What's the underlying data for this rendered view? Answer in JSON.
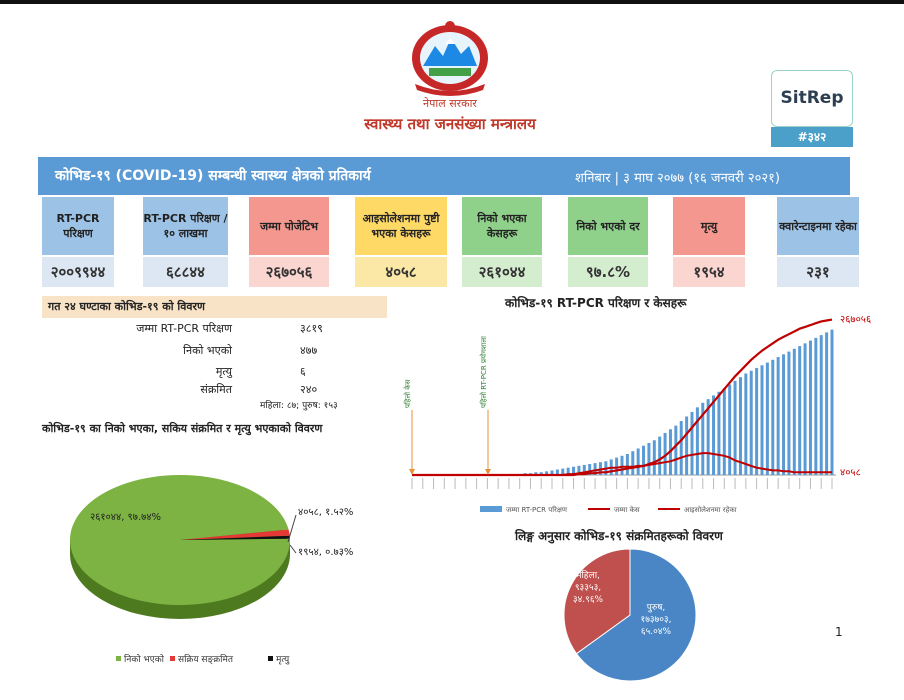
{
  "header": {
    "gov_label": "नेपाल सरकार",
    "ministry": "स्वास्थ्य तथा जनसंख्या मन्त्रालय",
    "sitrep_title": "SitRep",
    "sitrep_number": "#३४२"
  },
  "banner": {
    "title": "कोभिड-१९ (COVID-19) सम्बन्धी स्वास्थ्य क्षेत्रको प्रतिकार्य",
    "date": "शनिबार | ३ माघ २०७७ (१६ जनवरी २०२१)"
  },
  "cards": [
    {
      "label": "RT-PCR परिक्षण",
      "value": "२००९९४४",
      "color": "#9cc2e5",
      "value_bg": "#dde7f3"
    },
    {
      "label": "RT-PCR परिक्षण /१० लाखमा",
      "value": "६८८४४",
      "color": "#9cc2e5",
      "value_bg": "#dde7f3"
    },
    {
      "label": "जम्मा पोजेटिभ",
      "value": "२६७०५६",
      "color": "#f4978e",
      "value_bg": "#fbd5d0"
    },
    {
      "label": "आइसोलेशनमा पुष्टी भएका केसहरू",
      "value": "४०५८",
      "color": "#ffd966",
      "value_bg": "#fbe8a6"
    },
    {
      "label": "निको भएका केसहरू",
      "value": "२६१०४४",
      "color": "#8fd18b",
      "value_bg": "#d4edcf"
    },
    {
      "label": "निको भएको दर",
      "value": "९७.८%",
      "color": "#8fd18b",
      "value_bg": "#d4edcf"
    },
    {
      "label": "मृत्यु",
      "value": "१९५४",
      "color": "#f4978e",
      "value_bg": "#fbd5d0"
    },
    {
      "label": "क्वारेन्टाइनमा रहेका",
      "value": "२३१",
      "color": "#9cc2e5",
      "value_bg": "#dde7f3"
    }
  ],
  "last24": {
    "heading": "गत २४ घण्टाका कोभिड-१९ को विवरण",
    "rows": [
      {
        "label": "जम्मा RT-PCR परिक्षण",
        "value": "३८१९"
      },
      {
        "label": "निको भएको",
        "value": "४७७"
      },
      {
        "label": "मृत्यु",
        "value": "६"
      },
      {
        "label": "संक्रमित",
        "value": "२४०"
      }
    ],
    "sex_split": "महिला: ८७; पुरुष: १५३"
  },
  "chart_data": [
    {
      "type": "pie",
      "title": "कोभिड-१९ का निको भएका, सकिय संक्रमित र मृत्यु भएकाको विवरण",
      "slices": [
        {
          "name": "निको भएको",
          "value": 261044,
          "label": "२६१०४४, ९७.७४%",
          "color": "#7cb342"
        },
        {
          "name": "सक्रिय सङ्क्रमित",
          "value": 4058,
          "label": "४०५८, १.५२%",
          "color": "#e53935"
        },
        {
          "name": "मृत्यु",
          "value": 1954,
          "label": "१९५४, ०.७३%",
          "color": "#111111"
        }
      ],
      "legend": [
        "निको भएको",
        "सक्रिय सङ्क्रमित",
        "मृत्यु"
      ],
      "legend_position": "bottom"
    },
    {
      "type": "bar",
      "title": "कोभिड-१९ RT-PCR परिक्षण र केसहरू",
      "annotations": [
        "पहिलो केस",
        "पहिलो RT-PCR प्रयोगशाला"
      ],
      "end_labels": {
        "cumulative_cases": "२६७०५६",
        "isolation": "४०५८"
      },
      "series": [
        {
          "name": "जम्मा RT-PCR परिक्षण",
          "kind": "bar",
          "color": "#5b9bd5",
          "values": [
            0,
            0,
            0,
            0,
            0,
            0,
            0,
            0,
            0,
            0,
            0,
            0,
            0,
            0,
            0,
            0,
            0,
            0,
            0,
            1,
            1,
            2,
            2,
            3,
            3,
            4,
            5,
            6,
            7,
            8,
            9,
            10,
            11,
            12,
            13,
            14,
            15,
            17,
            19,
            21,
            23,
            26,
            29,
            32,
            35,
            38,
            42,
            46,
            50,
            54,
            59,
            64,
            69,
            74,
            79,
            83,
            87,
            91,
            95,
            99,
            103,
            107,
            111,
            114,
            117,
            120,
            123,
            126,
            129,
            132,
            135,
            138,
            141,
            144,
            147,
            150,
            153,
            156,
            159
          ]
        },
        {
          "name": "जम्मा केस",
          "kind": "line",
          "color": "#c00000",
          "values": [
            0,
            0,
            0,
            0,
            0,
            0,
            0,
            0,
            0,
            0,
            0,
            0,
            0,
            0,
            0,
            0,
            0,
            0,
            0,
            0,
            0,
            0,
            0,
            0,
            0,
            0,
            0,
            0,
            0,
            0,
            0,
            1,
            1,
            2,
            2,
            3,
            3,
            4,
            5,
            6,
            7,
            8,
            9,
            10,
            12,
            14,
            17,
            21,
            26,
            32,
            38,
            45,
            52,
            59,
            66,
            73,
            80,
            87,
            94,
            101,
            108,
            114,
            120,
            126,
            131,
            136,
            140,
            144,
            148,
            151,
            154,
            157,
            160,
            162,
            164,
            166,
            168,
            169,
            170
          ]
        },
        {
          "name": "आइसोलेशनमा रहेका",
          "kind": "line",
          "color": "#c00000",
          "values": [
            0,
            0,
            0,
            0,
            0,
            0,
            0,
            0,
            0,
            0,
            0,
            0,
            0,
            0,
            0,
            0,
            0,
            0,
            0,
            0,
            0,
            0,
            0,
            0,
            0,
            0,
            0,
            0,
            0,
            1,
            1,
            2,
            3,
            4,
            5,
            6,
            7,
            8,
            8,
            9,
            9,
            9,
            10,
            10,
            11,
            12,
            13,
            14,
            15,
            17,
            19,
            21,
            22,
            23,
            24,
            24,
            23,
            22,
            21,
            19,
            16,
            14,
            12,
            10,
            8,
            7,
            6,
            5,
            5,
            4,
            4,
            3,
            3,
            3,
            3,
            3,
            3,
            3,
            3
          ]
        }
      ]
    },
    {
      "type": "pie",
      "title": "लिङ्ग अनुसार कोभिड-१९ संक्रमितहरूको विवरण",
      "slices": [
        {
          "name": "पुरुष",
          "value": 173703,
          "label": "पुरुष, १७३७०३, ६५.०४%",
          "color": "#4a86c5"
        },
        {
          "name": "महिला",
          "value": 93353,
          "label": "महिला, ९३३५३, ३४.९६%",
          "color": "#c0504d"
        }
      ]
    }
  ],
  "page_number": "1"
}
